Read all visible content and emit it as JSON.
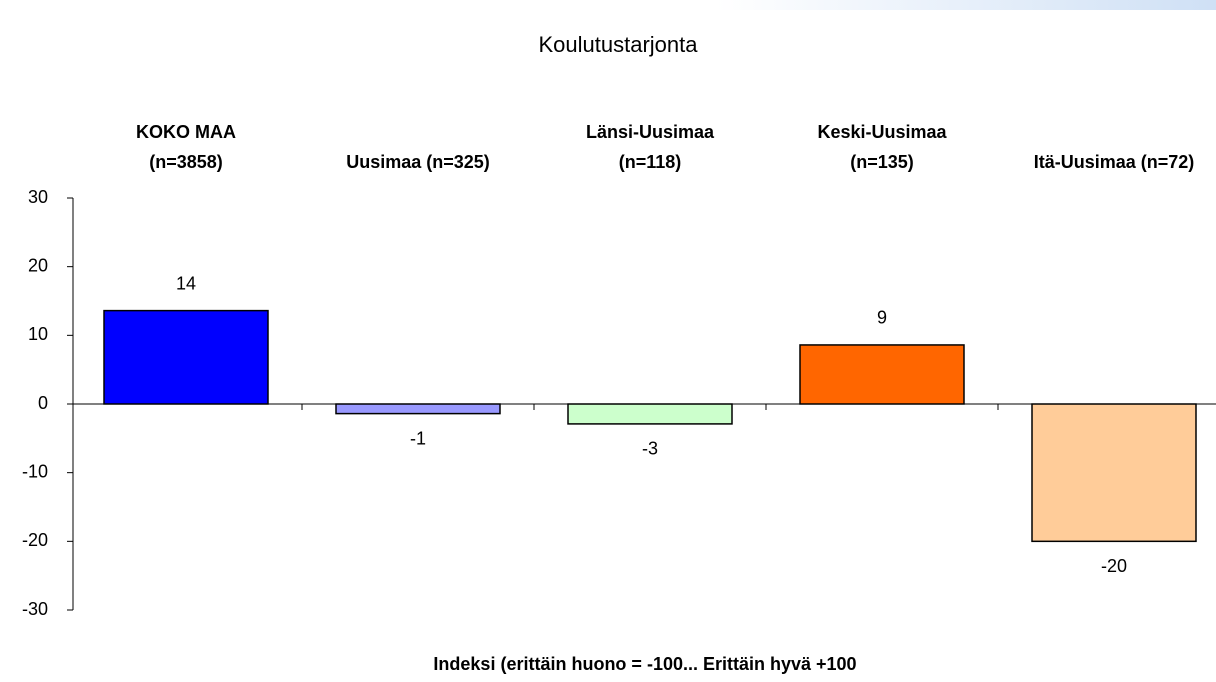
{
  "chart_data": {
    "type": "bar",
    "title": "Koulutustarjonta",
    "categories": [
      "KOKO MAA (n=3858)",
      "Uusimaa (n=325)",
      "Länsi-Uusimaa (n=118)",
      "Keski-Uusimaa (n=135)",
      "Itä-Uusimaa (n=72)"
    ],
    "values": [
      13.6,
      -1.4,
      -2.9,
      8.6,
      -20
    ],
    "value_labels": [
      "14",
      "-1",
      "-3",
      "9",
      "-20"
    ],
    "colors": [
      "#0000ff",
      "#9999ff",
      "#ccffcc",
      "#ff6600",
      "#ffcc99"
    ],
    "x_label": "Indeksi (erittäin huono = -100... Erittäin hyvä +100",
    "ylim": [
      -30,
      30
    ],
    "yticks": [
      -30,
      -20,
      -10,
      0,
      10,
      20,
      30
    ],
    "grid": false
  }
}
